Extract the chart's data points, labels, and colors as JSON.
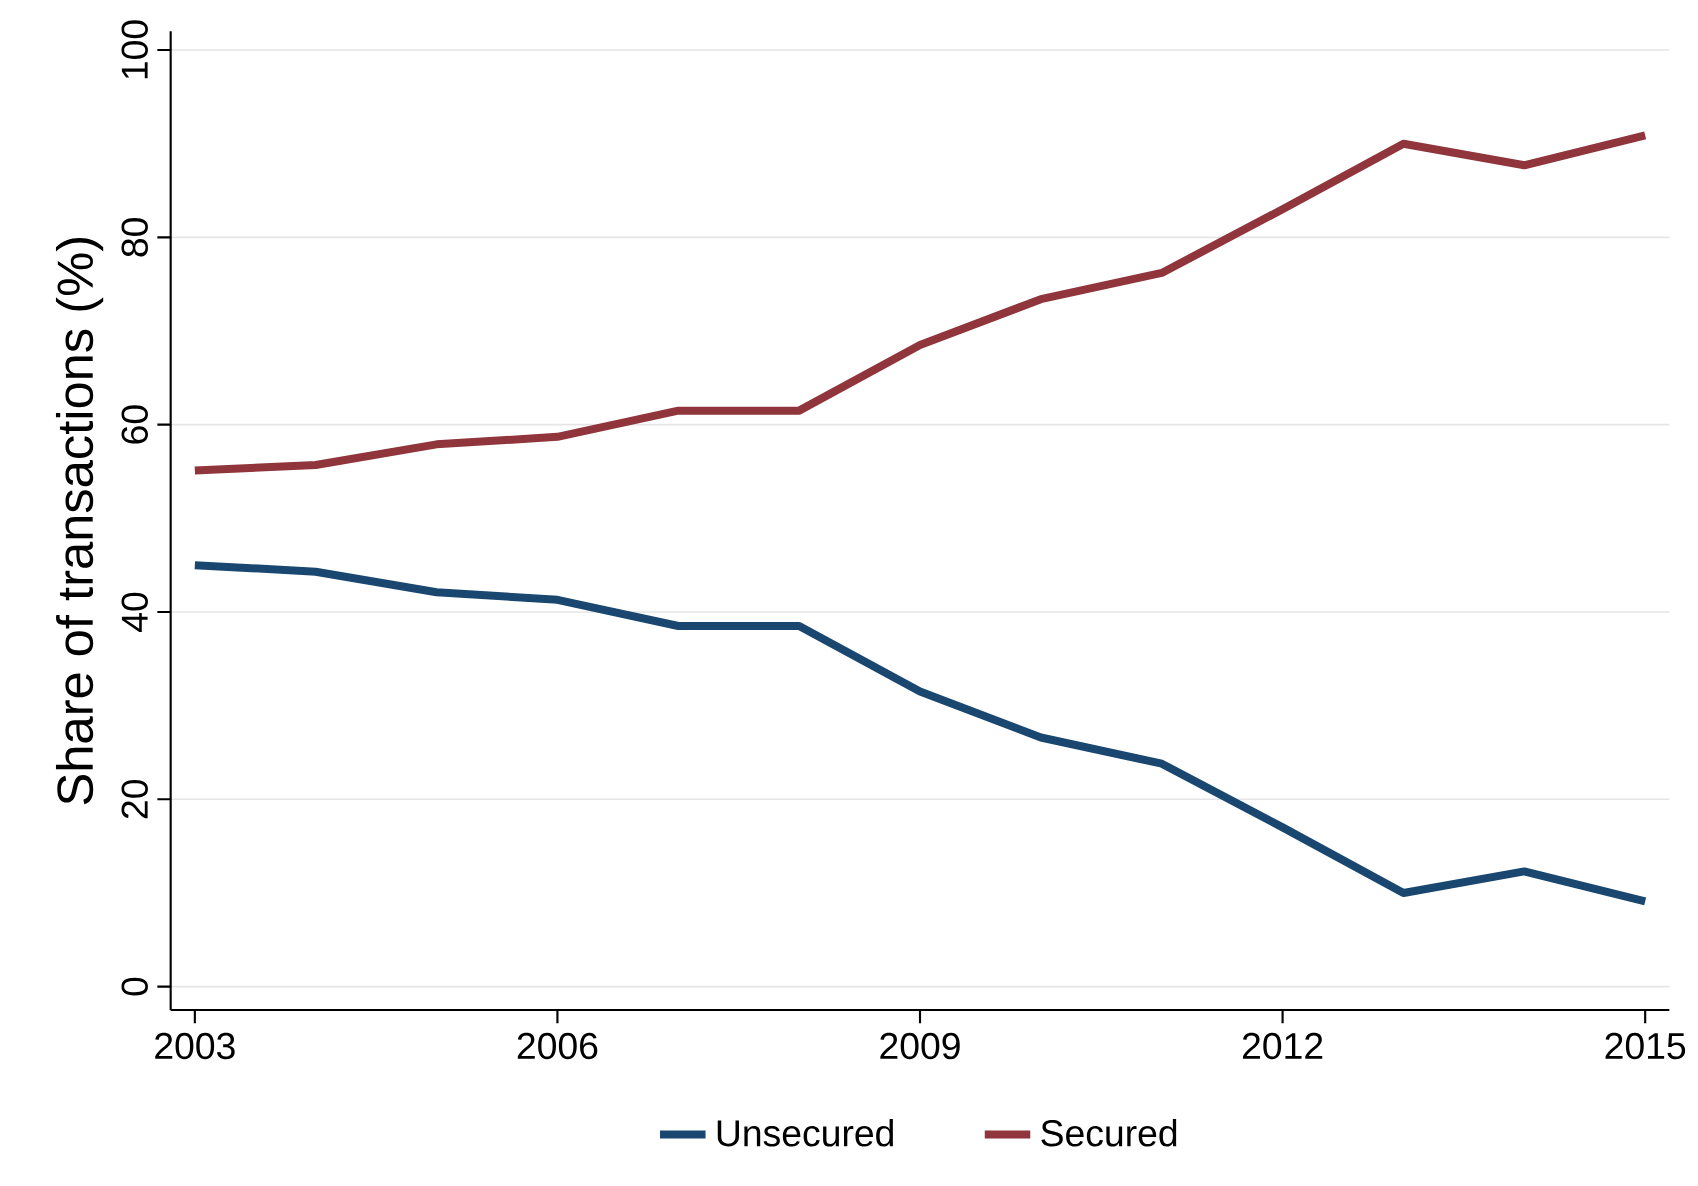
{
  "chart_data": {
    "type": "line",
    "ylabel": "Share of transactions (%)",
    "x": [
      2003,
      2004,
      2005,
      2006,
      2007,
      2008,
      2009,
      2010,
      2011,
      2012,
      2013,
      2014,
      2015
    ],
    "series": [
      {
        "name": "Unsecured",
        "color": "#1a476f",
        "values": [
          45,
          44.3,
          42.1,
          41.3,
          38.5,
          38.5,
          31.5,
          26.6,
          23.8,
          17,
          10,
          12.3,
          9.1
        ]
      },
      {
        "name": "Secured",
        "color": "#90353b",
        "values": [
          55.1,
          55.7,
          57.9,
          58.7,
          61.5,
          61.5,
          68.5,
          73.4,
          76.2,
          83,
          90,
          87.7,
          90.9
        ]
      }
    ],
    "xlim": [
      2002.8,
      2015.2
    ],
    "xticks": [
      2003,
      2006,
      2009,
      2012,
      2015
    ],
    "ylim": [
      -2.5,
      102
    ],
    "yticks": [
      0,
      20,
      40,
      60,
      80,
      100
    ],
    "grid": "y",
    "legend": "bottom",
    "marker": "none",
    "line_style": "solid"
  }
}
